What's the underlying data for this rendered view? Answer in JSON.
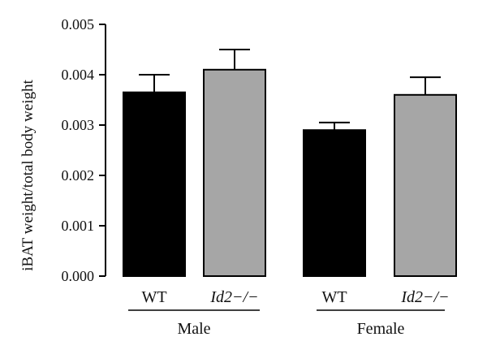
{
  "chart_data": {
    "type": "bar",
    "title": "",
    "xlabel": "",
    "ylabel": "iBAT weight/total body weight",
    "ylim": [
      0,
      0.005
    ],
    "yticks": [
      "0.000",
      "0.001",
      "0.002",
      "0.003",
      "0.004",
      "0.005"
    ],
    "grid": false,
    "groups": [
      {
        "name": "Male",
        "categories": [
          "WT",
          "Id2−/−"
        ]
      },
      {
        "name": "Female",
        "categories": [
          "WT",
          "Id2−/−"
        ]
      }
    ],
    "bars": [
      {
        "group": "Male",
        "category": "WT",
        "value": 0.00365,
        "error": 0.00035,
        "color": "#000000"
      },
      {
        "group": "Male",
        "category": "Id2−/−",
        "value": 0.0041,
        "error": 0.0004,
        "color": "#a6a6a6"
      },
      {
        "group": "Female",
        "category": "WT",
        "value": 0.0029,
        "error": 0.00015,
        "color": "#000000"
      },
      {
        "group": "Female",
        "category": "Id2−/−",
        "value": 0.0036,
        "error": 0.00035,
        "color": "#a6a6a6"
      }
    ]
  }
}
